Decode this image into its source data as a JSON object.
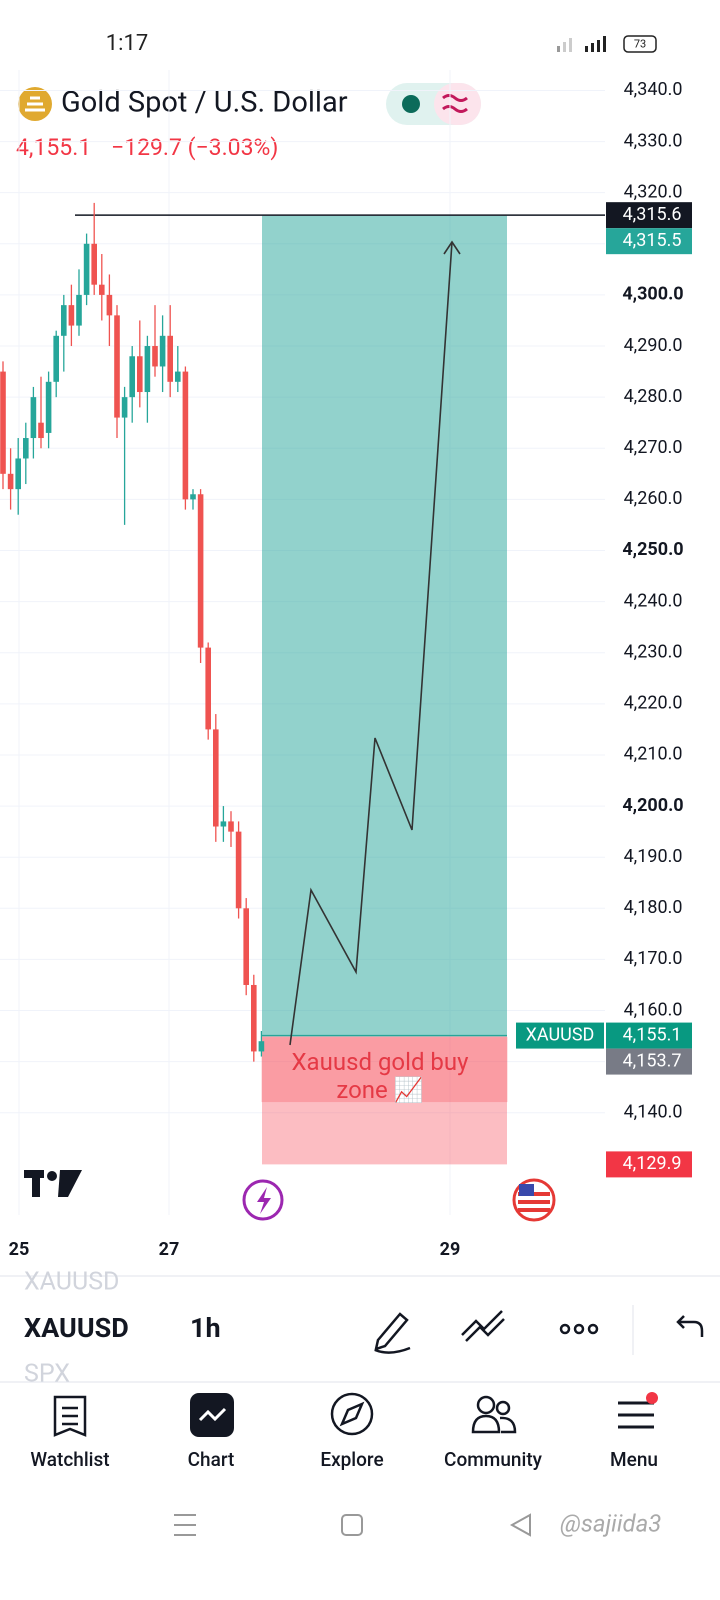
{
  "status_bar": {
    "time": "1:17",
    "battery": "73"
  },
  "header": {
    "title": "Gold Spot / U.S. Dollar",
    "price": "4,155.1",
    "change": "−129.7 (−3.03%)"
  },
  "chart_data": {
    "type": "candlestick",
    "open": [
      4285,
      4265,
      4262,
      4268,
      4272,
      4275,
      4273,
      4283,
      4292,
      4298,
      4294,
      4300,
      4310,
      4302,
      4300,
      4296,
      4276,
      4280,
      4288,
      4281,
      4290,
      4286,
      4292,
      4283,
      4285,
      4260,
      4261,
      4231,
      4215,
      4196,
      4197,
      4195,
      4180,
      4165,
      4152
    ],
    "high": [
      4287,
      4270,
      4272,
      4275,
      4282,
      4284,
      4285,
      4293,
      4300,
      4302,
      4305,
      4312,
      4318,
      4308,
      4304,
      4298,
      4282,
      4290,
      4295,
      4292,
      4298,
      4296,
      4298,
      4290,
      4286,
      4262,
      4262,
      4232,
      4218,
      4200,
      4199,
      4197,
      4182,
      4167,
      4156
    ],
    "low": [
      4262,
      4258,
      4257,
      4263,
      4268,
      4270,
      4270,
      4280,
      4285,
      4290,
      4292,
      4298,
      4300,
      4295,
      4290,
      4272,
      4255,
      4275,
      4278,
      4275,
      4284,
      4281,
      4280,
      4281,
      4258,
      4258,
      4228,
      4213,
      4193,
      4193,
      4192,
      4178,
      4163,
      4150,
      4151
    ],
    "close": [
      4265,
      4262,
      4268,
      4272,
      4280,
      4272,
      4283,
      4292,
      4298,
      4294,
      4300,
      4310,
      4302,
      4300,
      4296,
      4276,
      4280,
      4288,
      4281,
      4290,
      4286,
      4292,
      4283,
      4285,
      4260,
      4261,
      4231,
      4215,
      4196,
      4197,
      4195,
      4180,
      4165,
      4152,
      4154
    ],
    "up_color": "#26a69a",
    "down_color": "#ef5350",
    "ylim": [
      4120,
      4344
    ],
    "yticks": [
      {
        "value": 4140,
        "label": "4,140.0"
      },
      {
        "value": 4150,
        "label": "4,150.0"
      },
      {
        "value": 4160,
        "label": "4,160.0"
      },
      {
        "value": 4170,
        "label": "4,170.0"
      },
      {
        "value": 4180,
        "label": "4,180.0"
      },
      {
        "value": 4190,
        "label": "4,190.0"
      },
      {
        "value": 4200,
        "label": "4,200.0"
      },
      {
        "value": 4210,
        "label": "4,210.0"
      },
      {
        "value": 4220,
        "label": "4,220.0"
      },
      {
        "value": 4230,
        "label": "4,230.0"
      },
      {
        "value": 4240,
        "label": "4,240.0"
      },
      {
        "value": 4250,
        "label": "4,250.0"
      },
      {
        "value": 4260,
        "label": "4,260.0"
      },
      {
        "value": 4270,
        "label": "4,270.0"
      },
      {
        "value": 4280,
        "label": "4,280.0"
      },
      {
        "value": 4290,
        "label": "4,290.0"
      },
      {
        "value": 4300,
        "label": "4,300.0"
      },
      {
        "value": 4310,
        "label": "4,310.0"
      },
      {
        "value": 4320,
        "label": "4,320.0"
      },
      {
        "value": 4330,
        "label": "4,330.0"
      },
      {
        "value": 4340,
        "label": "4,340.0"
      }
    ],
    "x_labels": [
      "25",
      "27",
      "29"
    ],
    "grid": true,
    "badges": [
      {
        "value": 4315.6,
        "label": "4,315.6",
        "color": "#131722"
      },
      {
        "value": 4315.5,
        "label": "4,315.5",
        "color": "#26a69a"
      },
      {
        "name": "XAUUSD",
        "value": 4155.1,
        "label": "4,155.1",
        "color": "#089981"
      },
      {
        "value": 4153.7,
        "label": "4,153.7",
        "color": "#787b86"
      },
      {
        "value": 4129.9,
        "label": "4,129.9",
        "color": "#f23645"
      }
    ],
    "annotation": "Xauusd gold buy zone 📈"
  },
  "toolbar": {
    "symbol": "XAUUSD",
    "interval": "1h",
    "symbol_above": "XAUUSD",
    "symbol_below": "SPX"
  },
  "tabs": [
    "Watchlist",
    "Chart",
    "Explore",
    "Community",
    "Menu"
  ],
  "watermark": "@sajiida3"
}
